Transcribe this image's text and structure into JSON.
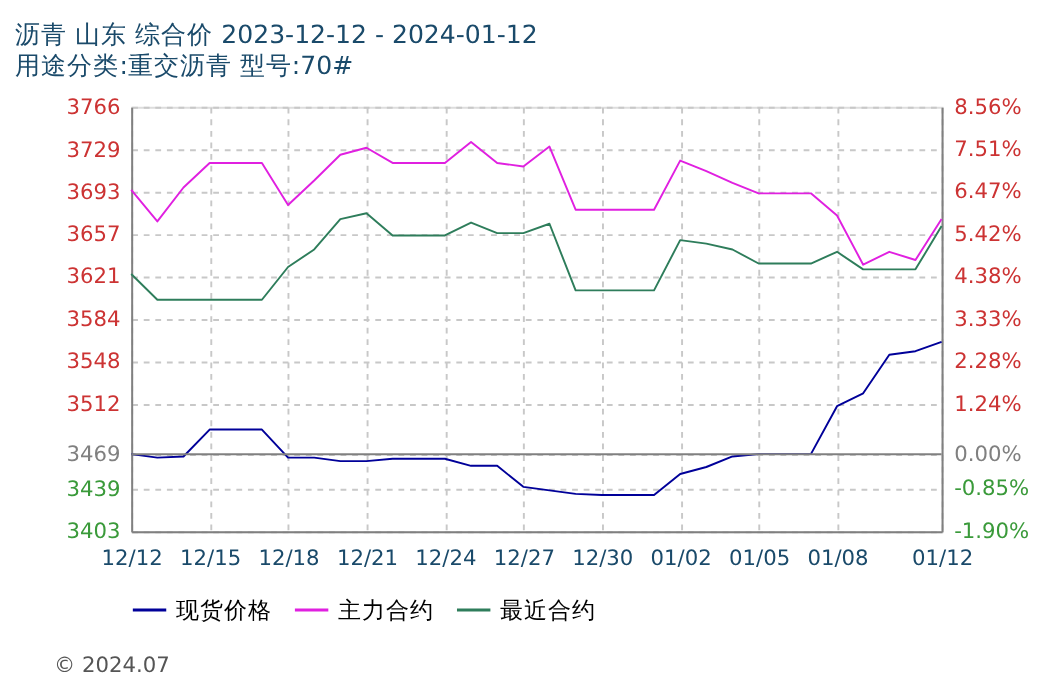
{
  "chart_data": {
    "type": "line",
    "title": "沥青  山东  综合价  2023-12-12 - 2024-01-12",
    "subtitle": "用途分类:重交沥青  型号:70#",
    "x": [
      "2023-12-12",
      "2023-12-13",
      "2023-12-14",
      "2023-12-15",
      "2023-12-16",
      "2023-12-17",
      "2023-12-18",
      "2023-12-19",
      "2023-12-20",
      "2023-12-21",
      "2023-12-22",
      "2023-12-23",
      "2023-12-24",
      "2023-12-25",
      "2023-12-26",
      "2023-12-27",
      "2023-12-28",
      "2023-12-29",
      "2023-12-30",
      "2023-12-31",
      "2024-01-01",
      "2024-01-02",
      "2024-01-03",
      "2024-01-04",
      "2024-01-05",
      "2024-01-06",
      "2024-01-07",
      "2024-01-08",
      "2024-01-09",
      "2024-01-10",
      "2024-01-11",
      "2024-01-12"
    ],
    "series": [
      {
        "name": "现货价格",
        "color": "#000099",
        "values": [
          3469,
          3466,
          3467,
          3490,
          3490,
          3490,
          3466,
          3466,
          3463,
          3463,
          3465,
          3465,
          3465,
          3459,
          3459,
          3441,
          3438,
          3435,
          3434,
          3434,
          3434,
          3452,
          3458,
          3467,
          3469,
          3469,
          3469,
          3510,
          3521,
          3554,
          3557,
          3565
        ]
      },
      {
        "name": "主力合约",
        "color": "#e020e0",
        "values": [
          3695,
          3668,
          3697,
          3718,
          3718,
          3718,
          3682,
          3703,
          3725,
          3731,
          3718,
          3718,
          3718,
          3736,
          3718,
          3715,
          3732,
          3678,
          3678,
          3678,
          3678,
          3720,
          3711,
          3701,
          3692,
          3692,
          3692,
          3673,
          3631,
          3642,
          3635,
          3670
        ]
      },
      {
        "name": "最近合约",
        "color": "#2e7d5b",
        "values": [
          3623,
          3601,
          3601,
          3601,
          3601,
          3601,
          3629,
          3644,
          3670,
          3675,
          3656,
          3656,
          3656,
          3667,
          3658,
          3658,
          3666,
          3609,
          3609,
          3609,
          3609,
          3652,
          3649,
          3644,
          3632,
          3632,
          3632,
          3642,
          3627,
          3627,
          3627,
          3664
        ]
      }
    ],
    "xlim": [
      "2023-12-12",
      "2024-01-12"
    ],
    "xticks": [
      {
        "value": "2023-12-12",
        "label": "12/12"
      },
      {
        "value": "2023-12-15",
        "label": "12/15"
      },
      {
        "value": "2023-12-18",
        "label": "12/18"
      },
      {
        "value": "2023-12-21",
        "label": "12/21"
      },
      {
        "value": "2023-12-24",
        "label": "12/24"
      },
      {
        "value": "2023-12-27",
        "label": "12/27"
      },
      {
        "value": "2023-12-30",
        "label": "12/30"
      },
      {
        "value": "2024-01-02",
        "label": "01/02"
      },
      {
        "value": "2024-01-05",
        "label": "01/05"
      },
      {
        "value": "2024-01-08",
        "label": "01/08"
      },
      {
        "value": "2024-01-12",
        "label": "01/12"
      }
    ],
    "ylim": [
      3403,
      3766
    ],
    "yticks": [
      3766,
      3729,
      3693,
      3657,
      3621,
      3584,
      3548,
      3512,
      3469,
      3439,
      3403
    ],
    "y2lim": [
      -1.9,
      8.56
    ],
    "y2ticks": [
      {
        "value": 8.56,
        "label": "8.56%"
      },
      {
        "value": 7.51,
        "label": "7.51%"
      },
      {
        "value": 6.47,
        "label": "6.47%"
      },
      {
        "value": 5.42,
        "label": "5.42%"
      },
      {
        "value": 4.38,
        "label": "4.38%"
      },
      {
        "value": 3.33,
        "label": "3.33%"
      },
      {
        "value": 2.28,
        "label": "2.28%"
      },
      {
        "value": 1.24,
        "label": "1.24%"
      },
      {
        "value": 0,
        "label": "0.00%"
      },
      {
        "value": -0.85,
        "label": "-0.85%"
      },
      {
        "value": -1.9,
        "label": "-1.90%"
      }
    ],
    "ref_lines": [
      {
        "axis": "y2",
        "value": 0,
        "color": "#808080",
        "line_style": "solid"
      }
    ],
    "annotations": [
      "© 2024.07"
    ],
    "grid": true,
    "legend": "bottom",
    "line_style": "solid"
  }
}
